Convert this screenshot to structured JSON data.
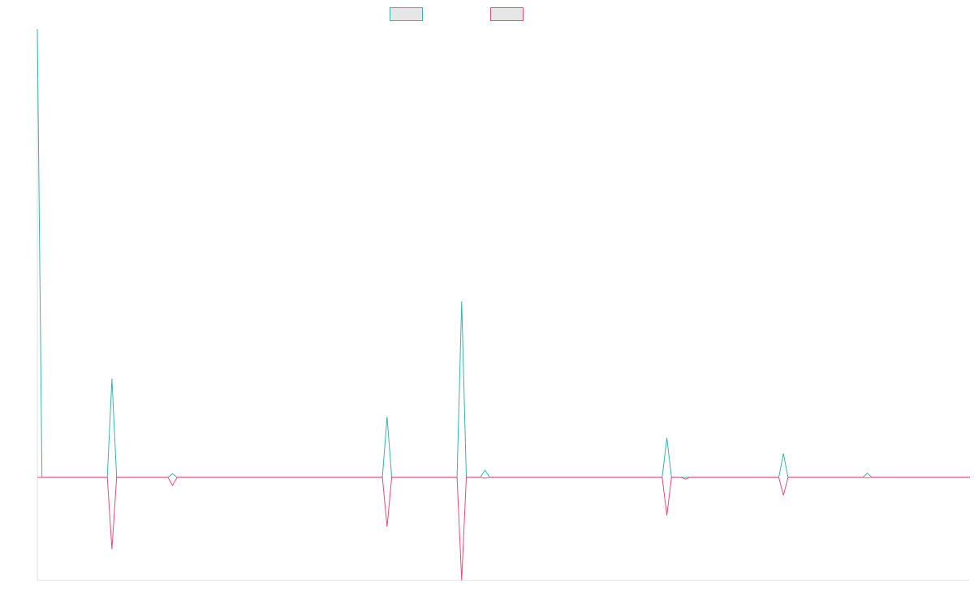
{
  "chart_data": {
    "type": "line",
    "x_count": 200,
    "ylim": [
      -0.23,
      1.0
    ],
    "grid": false,
    "legend": "top-center",
    "series": [
      {
        "color": "#36b5ad",
        "fill": "#e6e6e6",
        "points": [
          [
            0,
            1.0
          ],
          [
            1,
            0.0
          ],
          [
            15,
            0.0
          ],
          [
            16,
            0.22
          ],
          [
            17,
            0.0
          ],
          [
            28,
            0.0
          ],
          [
            29,
            0.008
          ],
          [
            30,
            0.0
          ],
          [
            74,
            0.0
          ],
          [
            75,
            0.135
          ],
          [
            76,
            0.0
          ],
          [
            90,
            0.0
          ],
          [
            91,
            0.393
          ],
          [
            92,
            0.0
          ],
          [
            95,
            0.0
          ],
          [
            96,
            0.016
          ],
          [
            97,
            0.0
          ],
          [
            134,
            0.0
          ],
          [
            135,
            0.088
          ],
          [
            136,
            0.0
          ],
          [
            138,
            0.0
          ],
          [
            139,
            0.0
          ],
          [
            140,
            0.0
          ],
          [
            159,
            0.0
          ],
          [
            160,
            0.053
          ],
          [
            161,
            0.0
          ],
          [
            177,
            0.0
          ],
          [
            178,
            0.009
          ],
          [
            179,
            0.0
          ],
          [
            200,
            0.0
          ]
        ]
      },
      {
        "color": "#f0497a",
        "fill": "#e6e6e6",
        "points": [
          [
            0,
            0.0
          ],
          [
            15,
            0.0
          ],
          [
            16,
            -0.16
          ],
          [
            17,
            0.0
          ],
          [
            28,
            0.0
          ],
          [
            29,
            -0.018
          ],
          [
            30,
            0.0
          ],
          [
            74,
            0.0
          ],
          [
            75,
            -0.11
          ],
          [
            76,
            0.0
          ],
          [
            90,
            0.0
          ],
          [
            91,
            -0.23
          ],
          [
            92,
            0.0
          ],
          [
            95,
            0.0
          ],
          [
            96,
            -0.002
          ],
          [
            97,
            0.0
          ],
          [
            134,
            0.0
          ],
          [
            135,
            -0.085
          ],
          [
            136,
            0.0
          ],
          [
            138,
            0.0
          ],
          [
            139,
            -0.004
          ],
          [
            140,
            0.0
          ],
          [
            159,
            0.0
          ],
          [
            160,
            -0.04
          ],
          [
            161,
            0.0
          ],
          [
            177,
            0.0
          ],
          [
            178,
            -0.001
          ],
          [
            179,
            0.0
          ],
          [
            200,
            0.0
          ]
        ]
      }
    ]
  }
}
